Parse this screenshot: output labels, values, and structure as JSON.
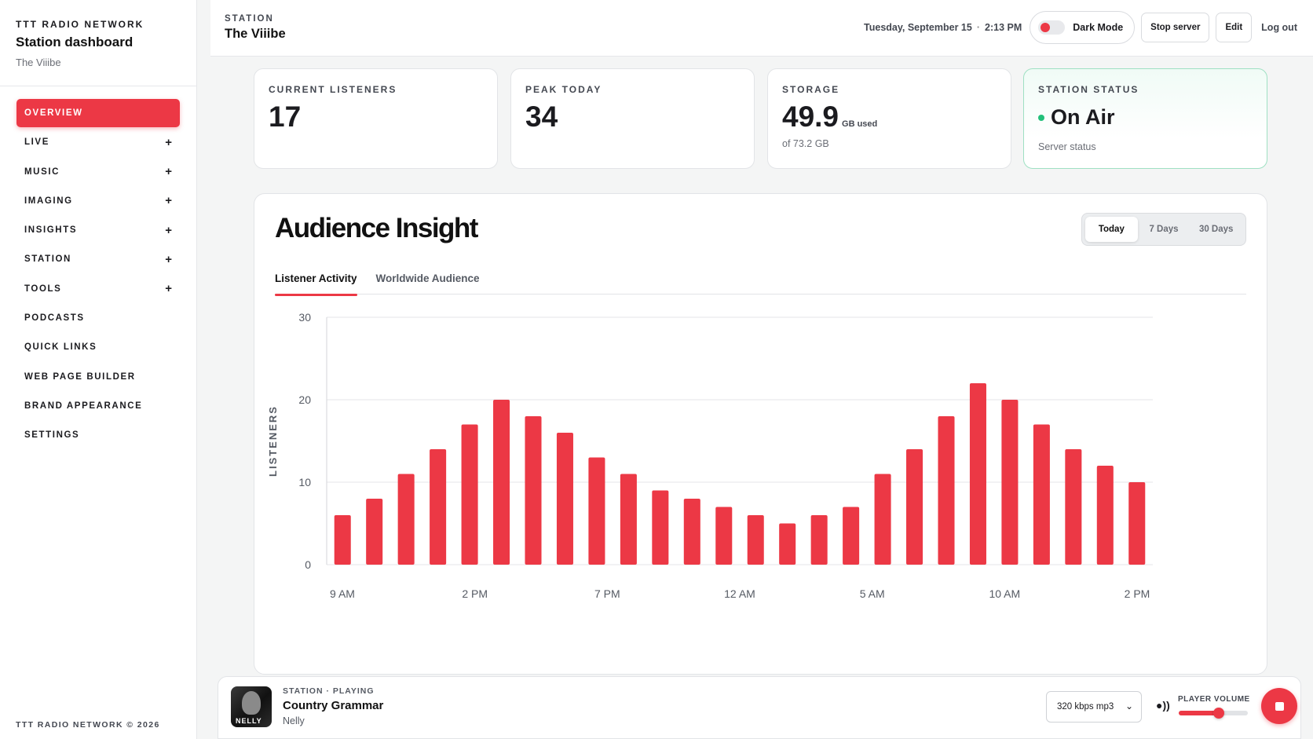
{
  "sidebar": {
    "network": "TTT RADIO NETWORK",
    "title": "Station dashboard",
    "station": "The Viiibe",
    "items": [
      {
        "label": "OVERVIEW",
        "active": true,
        "expandable": false
      },
      {
        "label": "LIVE",
        "active": false,
        "expandable": true
      },
      {
        "label": "MUSIC",
        "active": false,
        "expandable": true
      },
      {
        "label": "IMAGING",
        "active": false,
        "expandable": true
      },
      {
        "label": "INSIGHTS",
        "active": false,
        "expandable": true
      },
      {
        "label": "STATION",
        "active": false,
        "expandable": true
      },
      {
        "label": "TOOLS",
        "active": false,
        "expandable": true
      },
      {
        "label": "PODCASTS",
        "active": false,
        "expandable": false
      },
      {
        "label": "QUICK LINKS",
        "active": false,
        "expandable": false
      },
      {
        "label": "WEB PAGE BUILDER",
        "active": false,
        "expandable": false
      },
      {
        "label": "BRAND APPEARANCE",
        "active": false,
        "expandable": false
      },
      {
        "label": "SETTINGS",
        "active": false,
        "expandable": false
      }
    ],
    "expand_glyph": "+",
    "footer": "TTT RADIO NETWORK © 2026"
  },
  "header": {
    "station_label": "STATION",
    "station_name": "The Viiibe",
    "date": "Tuesday, September 15",
    "separator": "·",
    "time": "2:13 PM",
    "dark_mode_label": "Dark Mode",
    "stop_server_label": "Stop server",
    "edit_label": "Edit",
    "logout_label": "Log out"
  },
  "stats": {
    "listeners": {
      "label": "CURRENT LISTENERS",
      "value": "17"
    },
    "peak": {
      "label": "PEAK TODAY",
      "value": "34"
    },
    "storage": {
      "label": "STORAGE",
      "value": "49.9",
      "unit": "GB used",
      "sub": "of 73.2 GB"
    },
    "status": {
      "label": "STATION STATUS",
      "value": "On Air",
      "sub": "Server status"
    }
  },
  "insight": {
    "title": "Audience Insight",
    "ranges": [
      "Today",
      "7 Days",
      "30 Days"
    ],
    "active_range": "Today",
    "tabs": [
      "Listener Activity",
      "Worldwide Audience"
    ],
    "active_tab": "Listener Activity"
  },
  "chart_data": {
    "type": "bar",
    "ylabel": "LISTENERS",
    "xlabel": "",
    "ylim": [
      0,
      30
    ],
    "yticks": [
      0,
      10,
      20,
      30
    ],
    "xtick_labels": [
      "9 AM",
      "2 PM",
      "7 PM",
      "12 AM",
      "5 AM",
      "10 AM",
      "2 PM"
    ],
    "values": [
      6,
      8,
      11,
      14,
      17,
      20,
      18,
      16,
      13,
      11,
      9,
      8,
      7,
      6,
      5,
      6,
      7,
      11,
      14,
      18,
      22,
      20,
      17,
      14,
      12,
      10
    ],
    "bar_color": "#ec3845",
    "grid": true
  },
  "player": {
    "label": "STATION · PLAYING",
    "title": "Country Grammar",
    "artist": "Nelly",
    "art_text": "NELLY",
    "quality": "320 kbps mp3",
    "volume_label": "PLAYER VOLUME",
    "volume": 0.58
  },
  "colors": {
    "accent": "#ec3845",
    "status_green": "#22c07a"
  }
}
